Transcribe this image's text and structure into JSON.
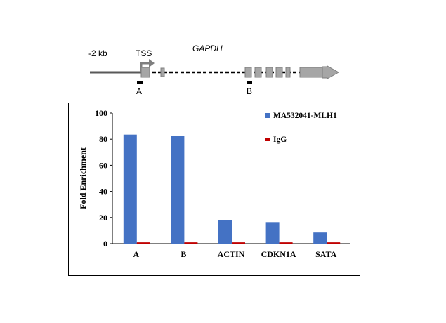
{
  "gene_diagram": {
    "upstream_label": "-2 kb",
    "tss_label": "TSS",
    "gene_name": "GAPDH",
    "region_labels": [
      "A",
      "B"
    ],
    "exon_color": "#a6a6a6",
    "line_color": "#595959"
  },
  "chart_data": {
    "type": "bar",
    "categories": [
      "A",
      "B",
      "ACTIN",
      "CDKN1A",
      "SATA"
    ],
    "series": [
      {
        "name": "MA532041-MLH1",
        "values": [
          83.5,
          82.5,
          18,
          16.5,
          8.5
        ],
        "color": "#4472c4"
      },
      {
        "name": "IgG",
        "values": [
          1,
          1,
          1,
          1,
          1
        ],
        "color": "#c00000"
      }
    ],
    "title": "",
    "xlabel": "",
    "ylabel": "Fold Enrichment",
    "ylim": [
      0,
      100
    ],
    "yticks": [
      "0",
      "20",
      "40",
      "60",
      "80",
      "100"
    ],
    "grid": false,
    "legend_position": "top-right"
  }
}
